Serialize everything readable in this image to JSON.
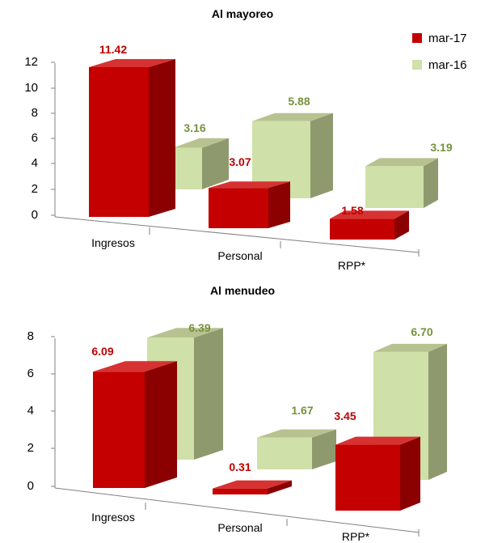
{
  "colors": {
    "mar17_front": "#c40000",
    "mar17_side": "#8b0000",
    "mar17_top": "#d63232",
    "mar16_front": "#cfe0a8",
    "mar16_side": "#8e9a6e",
    "mar16_top": "#b7c290",
    "mar17_label": "#c00000",
    "mar16_label": "#76923c"
  },
  "legend": [
    {
      "name": "mar-17"
    },
    {
      "name": "mar-16"
    }
  ],
  "chart_data": [
    {
      "type": "bar",
      "title": "Al mayoreo",
      "categories": [
        "Ingresos",
        "Personal",
        "RPP*"
      ],
      "series": [
        {
          "name": "mar-17",
          "values": [
            11.42,
            3.07,
            1.58
          ],
          "labels": [
            "11.42",
            "3.07",
            "1.58"
          ]
        },
        {
          "name": "mar-16",
          "values": [
            3.16,
            5.88,
            3.19
          ],
          "labels": [
            "3.16",
            "5.88",
            "3.19"
          ]
        }
      ],
      "ylim": [
        0,
        12
      ],
      "yticks": [
        "0",
        "2",
        "4",
        "6",
        "8",
        "10",
        "12"
      ],
      "legend_position": "top-right",
      "style": "3d-clustered"
    },
    {
      "type": "bar",
      "title": "Al menudeo",
      "categories": [
        "Ingresos",
        "Personal",
        "RPP*"
      ],
      "series": [
        {
          "name": "mar-17",
          "values": [
            6.09,
            0.31,
            3.45
          ],
          "labels": [
            "6.09",
            "0.31",
            "3.45"
          ]
        },
        {
          "name": "mar-16",
          "values": [
            6.39,
            1.67,
            6.7
          ],
          "labels": [
            "6.39",
            "1.67",
            "6.70"
          ]
        }
      ],
      "ylim": [
        0,
        8
      ],
      "yticks": [
        "0",
        "2",
        "4",
        "6",
        "8"
      ],
      "legend_position": "none",
      "style": "3d-clustered"
    }
  ]
}
